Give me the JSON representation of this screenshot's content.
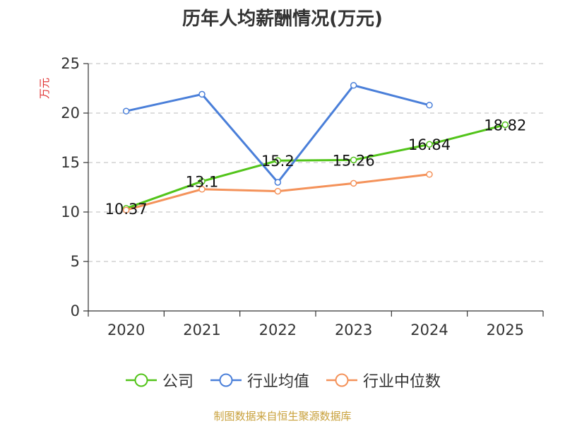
{
  "chart_data": {
    "type": "line",
    "title": "历年人均薪酬情况(万元)",
    "ylabel": "万元",
    "xlabel": "",
    "categories": [
      "2020",
      "2021",
      "2022",
      "2023",
      "2024",
      "2025"
    ],
    "ylim": [
      0,
      25
    ],
    "yticks": [
      0,
      5,
      10,
      15,
      20,
      25
    ],
    "grid": true,
    "legend_position": "bottom",
    "series": [
      {
        "name": "公司",
        "color": "#52c41a",
        "values": [
          10.37,
          13.1,
          15.2,
          15.26,
          16.84,
          18.82
        ],
        "labels": [
          "10.37",
          "13.1",
          "15.2",
          "15.26",
          "16.84",
          "18.82"
        ]
      },
      {
        "name": "行业均值",
        "color": "#4a7fd9",
        "values": [
          20.2,
          21.9,
          13.0,
          22.8,
          20.8,
          null
        ]
      },
      {
        "name": "行业中位数",
        "color": "#f4925a",
        "values": [
          10.2,
          12.3,
          12.1,
          12.9,
          13.8,
          null
        ]
      }
    ]
  },
  "source_note": "制图数据来自恒生聚源数据库"
}
